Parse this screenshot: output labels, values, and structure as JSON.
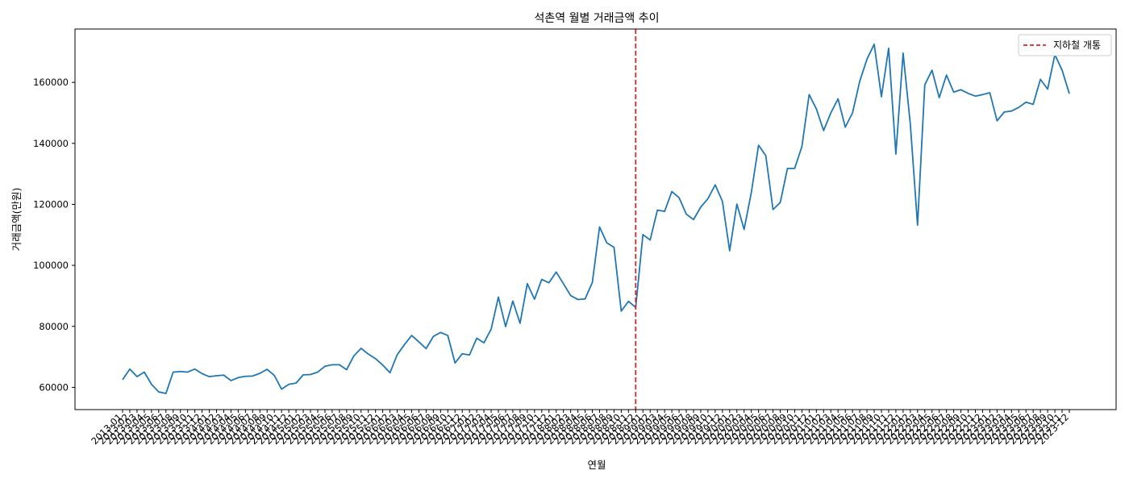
{
  "chart_data": {
    "type": "line",
    "title": "석촌역 월별 거래금액 추이",
    "xlabel": "연월",
    "ylabel": "거래금액(만원)",
    "ylim": [
      52700,
      177500
    ],
    "y_ticks": [
      60000,
      80000,
      100000,
      120000,
      140000,
      160000
    ],
    "grid": false,
    "legend_position": "top-right",
    "series": [
      {
        "color": "#1f77b4",
        "values": [
          62500,
          66000,
          63500,
          65000,
          61000,
          58500,
          58000,
          65000,
          65200,
          65000,
          66000,
          64500,
          63500,
          63800,
          64000,
          62200,
          63200,
          63600,
          63700,
          64600,
          65900,
          63900,
          59400,
          61000,
          61400,
          64100,
          64200,
          65000,
          66900,
          67400,
          67400,
          65800,
          70300,
          72800,
          70900,
          69400,
          67300,
          64800,
          70700,
          74000,
          77000,
          74900,
          72700,
          76700,
          78000,
          77000,
          68000,
          71000,
          70600,
          76100,
          74600,
          79100,
          89600,
          79900,
          88300,
          81000,
          94000,
          88900,
          95400,
          94300,
          97800,
          94000,
          90100,
          88800,
          89000,
          94400,
          112600,
          107400,
          105900,
          85000,
          88200,
          86200,
          110100,
          108300,
          118100,
          117700,
          124200,
          122200,
          116800,
          115000,
          119100,
          121900,
          126400,
          121000,
          104800,
          120100,
          111800,
          123900,
          139400,
          136000,
          118300,
          120600,
          131800,
          131800,
          139000,
          156000,
          151300,
          144200,
          150000,
          154600,
          145300,
          150000,
          160400,
          167600,
          172500,
          155300,
          171200,
          136500,
          169600,
          146300,
          113200,
          159200,
          164000,
          155000,
          162400,
          156800,
          157600,
          156400,
          155500,
          156000,
          156600,
          147400,
          150300,
          150600,
          151800,
          153500,
          152800,
          161000,
          157800,
          169100,
          164000,
          156300
        ]
      },
      {
        "name": "지하철 개통",
        "type": "vline",
        "color": "#d62728",
        "style": "dashed",
        "x": "2018-12"
      }
    ],
    "x_start": "2013-01",
    "x_end": "2023-12",
    "x_categories": [
      "2013-01",
      "2013-02",
      "2013-03",
      "2013-04",
      "2013-05",
      "2013-06",
      "2013-07",
      "2013-08",
      "2013-09",
      "2013-10",
      "2013-11",
      "2013-12",
      "2014-01",
      "2014-02",
      "2014-03",
      "2014-04",
      "2014-05",
      "2014-06",
      "2014-07",
      "2014-08",
      "2014-09",
      "2014-10",
      "2014-11",
      "2014-12",
      "2015-01",
      "2015-02",
      "2015-03",
      "2015-04",
      "2015-05",
      "2015-06",
      "2015-07",
      "2015-08",
      "2015-09",
      "2015-10",
      "2015-11",
      "2015-12",
      "2016-01",
      "2016-02",
      "2016-03",
      "2016-04",
      "2016-05",
      "2016-06",
      "2016-07",
      "2016-08",
      "2016-09",
      "2016-10",
      "2016-11",
      "2016-12",
      "2017-01",
      "2017-02",
      "2017-03",
      "2017-04",
      "2017-05",
      "2017-06",
      "2017-07",
      "2017-08",
      "2017-09",
      "2017-10",
      "2017-11",
      "2017-12",
      "2018-01",
      "2018-02",
      "2018-03",
      "2018-04",
      "2018-05",
      "2018-06",
      "2018-07",
      "2018-08",
      "2018-09",
      "2018-10",
      "2018-11",
      "2018-12",
      "2019-01",
      "2019-02",
      "2019-03",
      "2019-04",
      "2019-05",
      "2019-06",
      "2019-07",
      "2019-08",
      "2019-09",
      "2019-10",
      "2019-11",
      "2019-12",
      "2020-01",
      "2020-02",
      "2020-03",
      "2020-04",
      "2020-05",
      "2020-06",
      "2020-07",
      "2020-08",
      "2020-09",
      "2020-10",
      "2020-11",
      "2020-12",
      "2021-01",
      "2021-02",
      "2021-03",
      "2021-04",
      "2021-05",
      "2021-06",
      "2021-07",
      "2021-08",
      "2021-09",
      "2021-10",
      "2021-11",
      "2021-12",
      "2022-01",
      "2022-02",
      "2022-03",
      "2022-04",
      "2022-05",
      "2022-06",
      "2022-07",
      "2022-08",
      "2022-09",
      "2022-10",
      "2022-11",
      "2022-12",
      "2023-01",
      "2023-02",
      "2023-03",
      "2023-04",
      "2023-05",
      "2023-06",
      "2023-07",
      "2023-08",
      "2023-09",
      "2023-10",
      "2023-11",
      "2023-12"
    ]
  }
}
